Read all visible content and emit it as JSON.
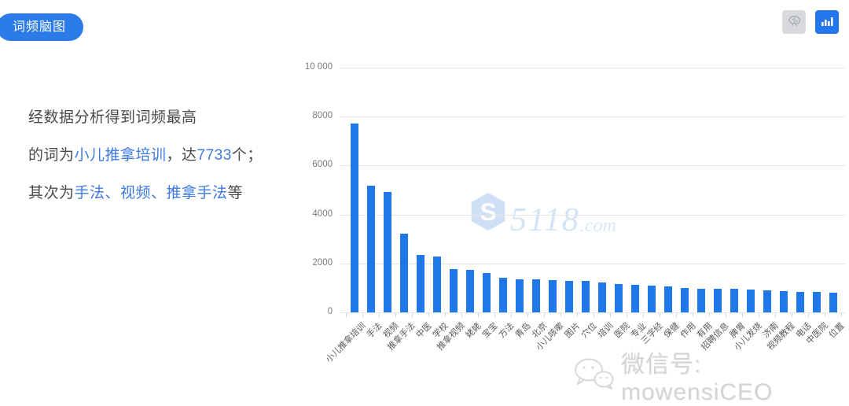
{
  "badge": {
    "label": "词频脑图"
  },
  "toolbar": {
    "view_buttons": [
      {
        "icon": "brain-icon",
        "active": false
      },
      {
        "icon": "bar-chart-icon",
        "active": true
      }
    ]
  },
  "description": {
    "line1": "经数据分析得到词频最高",
    "line2": {
      "prefix": "的词为",
      "keyword": "小儿推拿培训",
      "mid": "，达",
      "value": "7733",
      "suffix": "个；"
    },
    "line3": {
      "prefix": "其次为",
      "keywords": "手法、视频、推拿手法",
      "suffix": "等"
    }
  },
  "chart_data": {
    "type": "bar",
    "title": "",
    "xlabel": "",
    "ylabel": "",
    "bar_color": "#1e78e8",
    "grid": true,
    "legend": false,
    "ylim": [
      0,
      10000
    ],
    "y_ticks": [
      0,
      2000,
      4000,
      6000,
      8000,
      10000
    ],
    "y_tick_labels": [
      "0",
      "2000",
      "4000",
      "6000",
      "8000",
      "10 000"
    ],
    "categories": [
      "小儿推拿培训",
      "手法",
      "视频",
      "推拿手法",
      "中医",
      "学校",
      "推拿视频",
      "姥姥",
      "宝宝",
      "方法",
      "青岛",
      "北京",
      "小儿咳嗽",
      "图片",
      "穴位",
      "培训",
      "医院",
      "专业",
      "三字经",
      "保健",
      "作用",
      "有用",
      "招聘信息",
      "脾胃",
      "小儿发烧",
      "济南",
      "视频教程",
      "电话",
      "中医院",
      "位置"
    ],
    "values": [
      7733,
      5190,
      4930,
      3210,
      2350,
      2280,
      1760,
      1750,
      1620,
      1410,
      1350,
      1340,
      1320,
      1290,
      1280,
      1220,
      1160,
      1140,
      1100,
      1060,
      1010,
      970,
      960,
      950,
      940,
      890,
      870,
      830,
      820,
      800
    ]
  },
  "watermarks": {
    "site": {
      "logo_icon": "hexagon-s-icon",
      "number": "5118",
      "tld": ".com"
    },
    "wechat": {
      "icon": "wechat-icon",
      "label": "微信号: mowensiCEO"
    }
  },
  "colors": {
    "badge_bg": "#2b7ce9",
    "bar": "#1e78e8",
    "active_button_bg": "#2376eb",
    "inactive_button_bg": "#d7d9dc",
    "highlight_text": "#3c79e0",
    "body_text": "#4a4a4a"
  }
}
